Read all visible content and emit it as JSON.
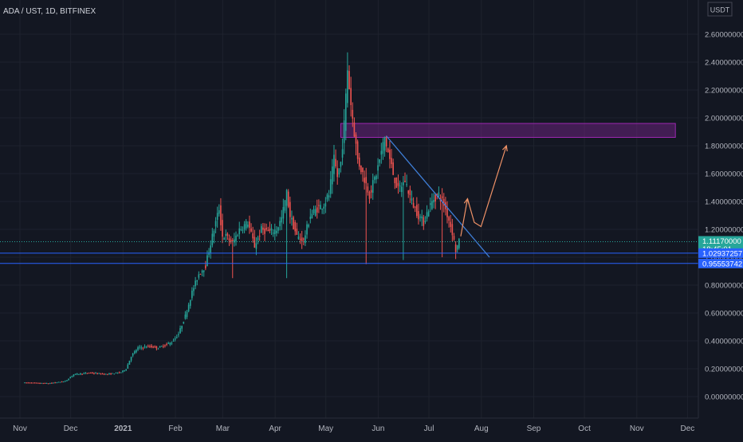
{
  "symbol": {
    "pair": "ADA / UST",
    "interval": "1D",
    "exchange": "BITFINEX"
  },
  "chart_data": {
    "type": "candlestick",
    "title": "ADA / UST, 1D, BITFINEX",
    "currency_label": "USDT",
    "ylim": [
      0,
      2.6
    ],
    "grid": true,
    "y_ticks": [
      "2.60000000",
      "2.40000000",
      "2.20000000",
      "2.00000000",
      "1.80000000",
      "1.60000000",
      "1.40000000",
      "1.20000000",
      "1.00000000",
      "0.80000000",
      "0.60000000",
      "0.40000000",
      "0.20000000",
      "0.00000000"
    ],
    "x_ticks": [
      "Nov",
      "Dec",
      "2021",
      "Feb",
      "Mar",
      "Apr",
      "May",
      "Jun",
      "Jul",
      "Aug",
      "Sep",
      "Oct",
      "Nov",
      "Dec"
    ],
    "x_tick_days": [
      0,
      30,
      61,
      92,
      120,
      151,
      181,
      212,
      242,
      273,
      304,
      334,
      365,
      395
    ],
    "bull_color": "#26a69a",
    "bear_color": "#ef5350",
    "price_path": [
      [
        0,
        0.1
      ],
      [
        15,
        0.095
      ],
      [
        25,
        0.11
      ],
      [
        30,
        0.16
      ],
      [
        40,
        0.17
      ],
      [
        50,
        0.16
      ],
      [
        58,
        0.175
      ],
      [
        61,
        0.2
      ],
      [
        64,
        0.29
      ],
      [
        68,
        0.35
      ],
      [
        75,
        0.36
      ],
      [
        80,
        0.35
      ],
      [
        84,
        0.37
      ],
      [
        88,
        0.39
      ],
      [
        92,
        0.45
      ],
      [
        96,
        0.58
      ],
      [
        100,
        0.75
      ],
      [
        104,
        0.88
      ],
      [
        108,
        0.94
      ],
      [
        110,
        1.05
      ],
      [
        113,
        1.2
      ],
      [
        116,
        1.35
      ],
      [
        118,
        1.15
      ],
      [
        120,
        1.15
      ],
      [
        124,
        1.1
      ],
      [
        128,
        1.2
      ],
      [
        133,
        1.25
      ],
      [
        137,
        1.08
      ],
      [
        141,
        1.2
      ],
      [
        146,
        1.18
      ],
      [
        150,
        1.2
      ],
      [
        153,
        1.28
      ],
      [
        156,
        1.46
      ],
      [
        158,
        1.3
      ],
      [
        162,
        1.15
      ],
      [
        166,
        1.12
      ],
      [
        170,
        1.3
      ],
      [
        174,
        1.35
      ],
      [
        178,
        1.38
      ],
      [
        181,
        1.45
      ],
      [
        184,
        1.7
      ],
      [
        186,
        1.58
      ],
      [
        188,
        1.68
      ],
      [
        190,
        1.95
      ],
      [
        192,
        2.35
      ],
      [
        194,
        2.1
      ],
      [
        196,
        1.9
      ],
      [
        198,
        1.7
      ],
      [
        201,
        1.6
      ],
      [
        205,
        1.45
      ],
      [
        209,
        1.6
      ],
      [
        212,
        1.75
      ],
      [
        214,
        1.86
      ],
      [
        216,
        1.75
      ],
      [
        219,
        1.6
      ],
      [
        222,
        1.48
      ],
      [
        226,
        1.55
      ],
      [
        230,
        1.4
      ],
      [
        234,
        1.3
      ],
      [
        237,
        1.25
      ],
      [
        240,
        1.35
      ],
      [
        243,
        1.42
      ],
      [
        246,
        1.45
      ],
      [
        249,
        1.38
      ],
      [
        252,
        1.27
      ],
      [
        254,
        1.18
      ],
      [
        256,
        1.05
      ],
      [
        258,
        1.11
      ]
    ],
    "levels": [
      {
        "name": "current",
        "price": 1.1117,
        "label": "1.11170000",
        "sub": "18:45:01",
        "color": "#26a69a"
      },
      {
        "name": "upper-line",
        "price": 1.02937257,
        "label": "1.02937257",
        "color": "#2962ff"
      },
      {
        "name": "lower-line",
        "price": 0.95553742,
        "label": "0.95553742",
        "color": "#2962ff"
      }
    ],
    "resistance_zone": {
      "from_day": 187,
      "to_day": 385,
      "low": 1.86,
      "high": 1.96,
      "color": "#9c27b0"
    },
    "trendline": {
      "from": [
        214,
        1.87
      ],
      "to": [
        275,
        1.0
      ],
      "color": "#3f7fd8"
    },
    "projection_path": [
      [
        258,
        1.15
      ],
      [
        262,
        1.42
      ],
      [
        266,
        1.25
      ],
      [
        270,
        1.22
      ],
      [
        285,
        1.8
      ]
    ],
    "projection_color": "#f09267"
  }
}
